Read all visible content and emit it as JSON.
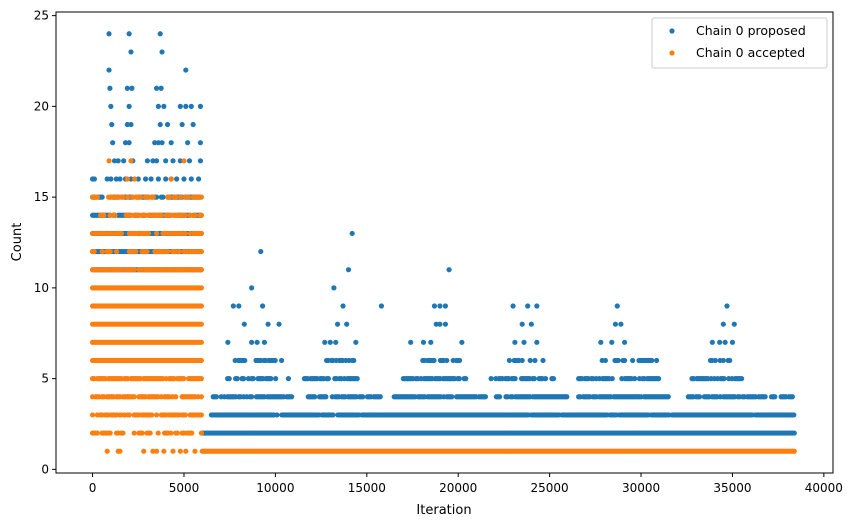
{
  "chart_data": {
    "type": "scatter",
    "xlabel": "Iteration",
    "ylabel": "Count",
    "xlim": [
      -2000,
      40500
    ],
    "ylim": [
      -0.2,
      25.2
    ],
    "x_ticks": [
      0,
      5000,
      10000,
      15000,
      20000,
      25000,
      30000,
      35000,
      40000
    ],
    "y_ticks": [
      0,
      5,
      10,
      15,
      20,
      25
    ],
    "grid": false,
    "legend_position": "top-right",
    "series": [
      {
        "name": "Chain 0 proposed",
        "color": "#1f77b4",
        "segments": [
          {
            "y": 24,
            "x": [
              900,
              2000,
              3700
            ]
          },
          {
            "y": 23,
            "x": [
              2100,
              3800
            ]
          },
          {
            "y": 22,
            "x": [
              900,
              5100
            ]
          },
          {
            "y": 21,
            "x": [
              950,
              1900,
              2150,
              3500,
              3750
            ]
          },
          {
            "y": 20,
            "x": [
              1000,
              2000,
              3600,
              3900,
              4800,
              5100,
              5400,
              5900
            ]
          },
          {
            "y": 19,
            "x": [
              1050,
              1900,
              2100,
              3700,
              4100,
              4900,
              5500
            ]
          },
          {
            "y": 18,
            "x": [
              1100,
              1800,
              2000,
              3400,
              3600,
              3800,
              4300,
              5200,
              5900
            ]
          },
          {
            "y": 17,
            "x": [
              1200,
              1400,
              1700,
              2200,
              3000,
              3300,
              3500,
              4000,
              4400,
              4800,
              5300,
              5900
            ]
          },
          {
            "y": 16,
            "x": [
              0,
              100,
              800,
              1000,
              1300,
              1500,
              1800,
              2100,
              2500,
              2900,
              3200,
              3600,
              4000,
              4300,
              4600,
              5000,
              5400,
              5800
            ]
          },
          {
            "y": 13,
            "x": [
              14200
            ]
          },
          {
            "y": 12,
            "x": [
              9200
            ]
          },
          {
            "y": 11,
            "x": [
              14000,
              19500
            ]
          },
          {
            "y": 10,
            "x": [
              8700,
              13200
            ]
          },
          {
            "y": 9,
            "x": [
              7700,
              8000,
              9300,
              13700,
              15800,
              18700,
              19000,
              19300,
              23000,
              23800,
              24300,
              28700,
              34700
            ]
          },
          {
            "y": 8,
            "x": [
              8300,
              9600,
              10200,
              13400,
              13900,
              18800,
              19000,
              19300,
              23500,
              24000,
              28600,
              28900,
              34500,
              35100
            ]
          },
          {
            "y": 7,
            "x": [
              7400,
              8700,
              9000,
              9400,
              12700,
              13000,
              13300,
              14400,
              17400,
              18100,
              18500,
              20200,
              23100,
              23600,
              24300,
              27800,
              28400,
              29100,
              33900,
              34300,
              34600,
              35000
            ]
          }
        ],
        "bands": [
          {
            "y": 15,
            "x_from": 0,
            "x_to": 6000,
            "density": 0.7
          },
          {
            "y": 14,
            "x_from": 0,
            "x_to": 6000,
            "density": 0.85
          },
          {
            "y": 13,
            "x_from": 0,
            "x_to": 6000,
            "density": 1
          },
          {
            "y": 12,
            "x_from": 0,
            "x_to": 6000,
            "density": 1
          },
          {
            "y": 11,
            "x_from": 0,
            "x_to": 6000,
            "density": 1
          },
          {
            "y": 6,
            "x_from": 7800,
            "x_to": 10400,
            "density": 0.5
          },
          {
            "y": 6,
            "x_from": 12800,
            "x_to": 14400,
            "density": 0.6
          },
          {
            "y": 6,
            "x_from": 17800,
            "x_to": 20100,
            "density": 0.5
          },
          {
            "y": 6,
            "x_from": 22800,
            "x_to": 24700,
            "density": 0.5
          },
          {
            "y": 6,
            "x_from": 27700,
            "x_to": 30900,
            "density": 0.5
          },
          {
            "y": 6,
            "x_from": 33800,
            "x_to": 35100,
            "density": 0.5
          },
          {
            "y": 5,
            "x_from": 7300,
            "x_to": 10800,
            "density": 0.6
          },
          {
            "y": 5,
            "x_from": 11500,
            "x_to": 14500,
            "density": 0.7
          },
          {
            "y": 5,
            "x_from": 17000,
            "x_to": 20500,
            "density": 0.7
          },
          {
            "y": 5,
            "x_from": 21800,
            "x_to": 25300,
            "density": 0.6
          },
          {
            "y": 5,
            "x_from": 26500,
            "x_to": 31000,
            "density": 0.6
          },
          {
            "y": 5,
            "x_from": 32700,
            "x_to": 35600,
            "density": 0.6
          },
          {
            "y": 4,
            "x_from": 6600,
            "x_to": 11000,
            "density": 0.8
          },
          {
            "y": 4,
            "x_from": 11800,
            "x_to": 16000,
            "density": 0.85
          },
          {
            "y": 4,
            "x_from": 16500,
            "x_to": 21500,
            "density": 0.85
          },
          {
            "y": 4,
            "x_from": 22000,
            "x_to": 26000,
            "density": 0.8
          },
          {
            "y": 4,
            "x_from": 26500,
            "x_to": 31500,
            "density": 0.85
          },
          {
            "y": 4,
            "x_from": 32500,
            "x_to": 38400,
            "density": 0.7
          },
          {
            "y": 3,
            "x_from": 6500,
            "x_to": 38400,
            "density": 0.95
          },
          {
            "y": 2,
            "x_from": 6000,
            "x_to": 38400,
            "density": 1
          }
        ]
      },
      {
        "name": "Chain 0 accepted",
        "color": "#ff7f0e",
        "segments": [
          {
            "y": 17,
            "x": [
              900,
              2100,
              5000
            ]
          },
          {
            "y": 16,
            "x": [
              1900,
              2300,
              4300
            ]
          },
          {
            "y": 1,
            "x": [
              800,
              1400,
              1500,
              2800,
              3300,
              3500,
              3900,
              4400,
              4800,
              5100,
              5600
            ]
          }
        ],
        "bands": [
          {
            "y": 15,
            "x_from": 0,
            "x_to": 6000,
            "density": 0.3
          },
          {
            "y": 14,
            "x_from": 0,
            "x_to": 6000,
            "density": 0.5
          },
          {
            "y": 13,
            "x_from": 0,
            "x_to": 6000,
            "density": 0.7
          },
          {
            "y": 12,
            "x_from": 0,
            "x_to": 6000,
            "density": 0.5
          },
          {
            "y": 11,
            "x_from": 0,
            "x_to": 6000,
            "density": 0.8
          },
          {
            "y": 10,
            "x_from": 0,
            "x_to": 6000,
            "density": 1
          },
          {
            "y": 9,
            "x_from": 0,
            "x_to": 6000,
            "density": 1
          },
          {
            "y": 8,
            "x_from": 0,
            "x_to": 6000,
            "density": 1
          },
          {
            "y": 7,
            "x_from": 0,
            "x_to": 6000,
            "density": 1
          },
          {
            "y": 6,
            "x_from": 0,
            "x_to": 6000,
            "density": 1
          },
          {
            "y": 5,
            "x_from": 0,
            "x_to": 6000,
            "density": 0.9
          },
          {
            "y": 4,
            "x_from": 0,
            "x_to": 6000,
            "density": 0.8
          },
          {
            "y": 3,
            "x_from": 0,
            "x_to": 6000,
            "density": 0.7
          },
          {
            "y": 2,
            "x_from": 0,
            "x_to": 6000,
            "density": 0.55
          },
          {
            "y": 1,
            "x_from": 6000,
            "x_to": 38400,
            "density": 1
          }
        ]
      }
    ]
  }
}
